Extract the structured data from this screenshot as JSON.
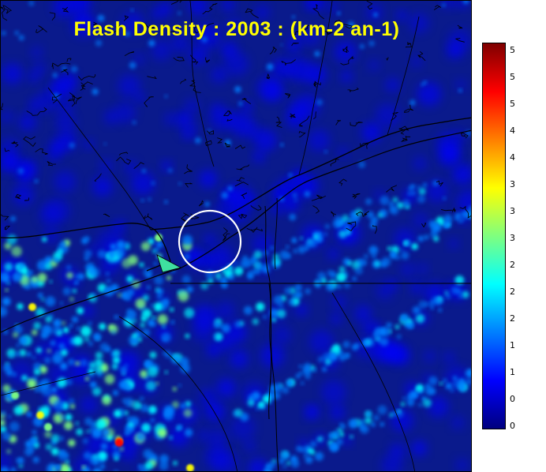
{
  "title": "Flash Density : 2003 : (km-2 an-1)",
  "colorbar": {
    "tick_labels": [
      "5",
      "5",
      "5",
      "4",
      "4",
      "3",
      "3",
      "3",
      "2",
      "2",
      "2",
      "1",
      "1",
      "0",
      "0"
    ],
    "colors": [
      "#00007f",
      "#0000ff",
      "#007fff",
      "#00ffff",
      "#7fff7f",
      "#ffff00",
      "#ff7f00",
      "#ff0000",
      "#7f0000"
    ]
  },
  "map": {
    "background_color": "#0a1a8c",
    "boundary_color": "#000000",
    "highlight_circle_color": "#ffffff"
  }
}
